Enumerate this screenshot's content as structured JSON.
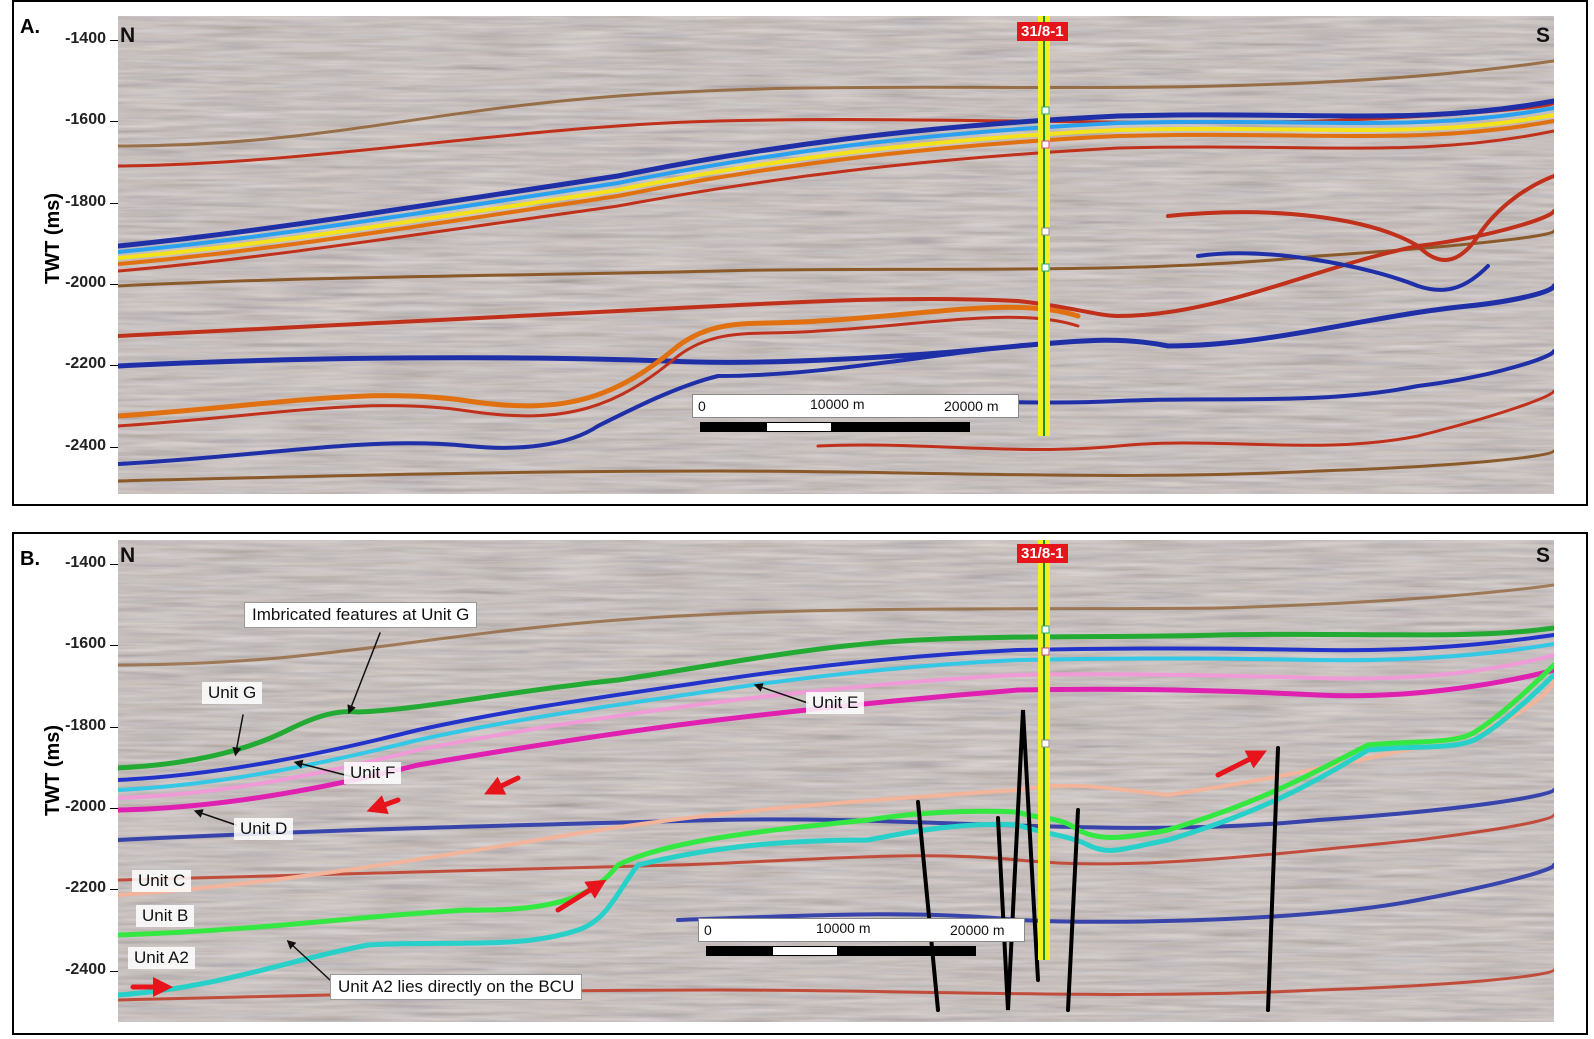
{
  "panels": [
    {
      "letter": "A.",
      "axis_title": "TWT (ms)",
      "ticks": [
        "-1400",
        "-1600",
        "-1800",
        "-2000",
        "-2200",
        "-2400"
      ],
      "north": "N",
      "south": "S",
      "well": "31/8-1",
      "scale": {
        "zero": "0",
        "mid": "10000 m",
        "end": "20000 m"
      }
    },
    {
      "letter": "B.",
      "axis_title": "TWT (ms)",
      "ticks": [
        "-1400",
        "-1600",
        "-1800",
        "-2000",
        "-2200",
        "-2400"
      ],
      "north": "N",
      "south": "S",
      "well": "31/8-1",
      "scale": {
        "zero": "0",
        "mid": "10000 m",
        "end": "20000 m"
      }
    }
  ],
  "annotations": {
    "imbricated": "Imbricated features at Unit G",
    "unit_g": "Unit G",
    "unit_e": "Unit E",
    "unit_f": "Unit F",
    "unit_d": "Unit D",
    "unit_c": "Unit C",
    "unit_b": "Unit B",
    "unit_a2": "Unit A2",
    "bcu": "Unit A2 lies directly on the BCU"
  },
  "colors": {
    "seismic_background": "#bdb9b2",
    "brown_reflector": "#8b5a2b",
    "blue_reflector": "#1f2fa8",
    "red_reflector": "#c0301a",
    "yellow_reflector": "#f4e21a",
    "unit_g_horizon": "#22aa33",
    "unit_e_horizon": "#2233cc",
    "unit_f_horizon": "#33c8e6",
    "unit_d_horizon": "#e020b0",
    "unit_c_horizon": "#f2b49a",
    "unit_b_horizon": "#33e840",
    "unit_a2_horizon": "#27d0c8",
    "well_track": "#f0f020",
    "well_label_bg": "#e8141b",
    "arrow": "#e8141b"
  }
}
